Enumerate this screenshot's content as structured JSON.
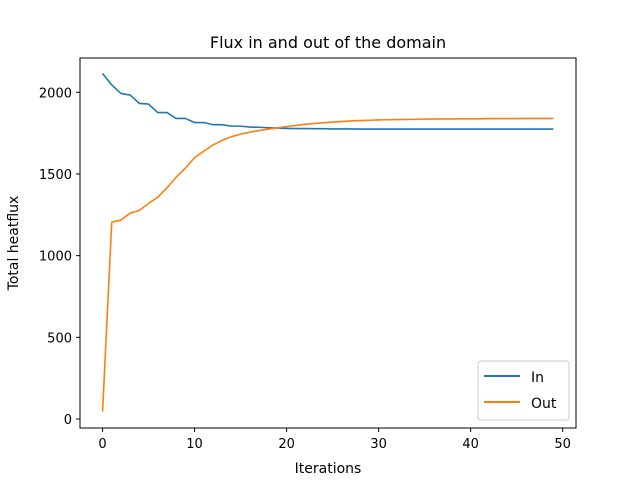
{
  "chart_data": {
    "type": "line",
    "title": "Flux in and out of the domain",
    "xlabel": "Iterations",
    "ylabel": "Total heatflux",
    "xlim": [
      -2.45,
      51.45
    ],
    "ylim": [
      -55,
      2210
    ],
    "xticks": [
      0,
      10,
      20,
      30,
      40,
      50
    ],
    "yticks": [
      0,
      500,
      1000,
      1500,
      2000
    ],
    "grid": false,
    "legend_position": "lower right",
    "x": [
      0,
      1,
      2,
      3,
      4,
      5,
      6,
      7,
      8,
      9,
      10,
      11,
      12,
      13,
      14,
      15,
      16,
      17,
      18,
      19,
      20,
      21,
      22,
      23,
      24,
      25,
      26,
      27,
      28,
      29,
      30,
      31,
      32,
      33,
      34,
      35,
      36,
      37,
      38,
      39,
      40,
      41,
      42,
      43,
      44,
      45,
      46,
      47,
      48,
      49
    ],
    "series": [
      {
        "name": "In",
        "color": "#1f77b4",
        "values": [
          2115,
          2045,
          1993,
          1983,
          1932,
          1928,
          1876,
          1876,
          1840,
          1840,
          1815,
          1815,
          1802,
          1802,
          1793,
          1793,
          1787,
          1786,
          1783,
          1781,
          1779,
          1778,
          1778,
          1777,
          1777,
          1776,
          1776,
          1776,
          1775,
          1775,
          1775,
          1775,
          1775,
          1775,
          1775,
          1775,
          1775,
          1775,
          1775,
          1775,
          1775,
          1775,
          1775,
          1775,
          1775,
          1775,
          1775,
          1775,
          1775,
          1775
        ]
      },
      {
        "name": "Out",
        "color": "#ff7f0e",
        "values": [
          45,
          1205,
          1218,
          1260,
          1277,
          1320,
          1358,
          1415,
          1480,
          1536,
          1600,
          1640,
          1677,
          1706,
          1728,
          1744,
          1756,
          1766,
          1774,
          1782,
          1790,
          1797,
          1804,
          1809,
          1813,
          1818,
          1821,
          1825,
          1827,
          1829,
          1831,
          1832,
          1833,
          1834,
          1835,
          1836,
          1836,
          1837,
          1837,
          1838,
          1838,
          1838,
          1839,
          1839,
          1839,
          1839,
          1840,
          1840,
          1840,
          1840
        ]
      }
    ]
  }
}
